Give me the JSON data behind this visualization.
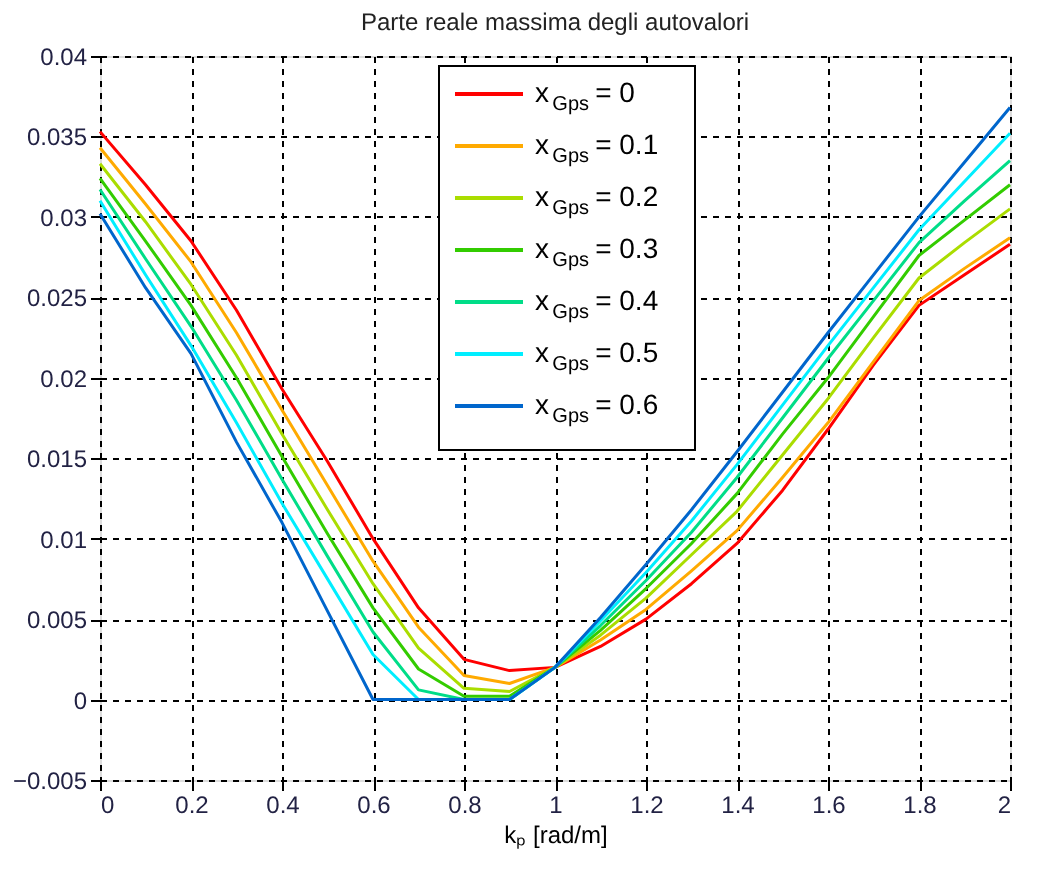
{
  "chart_data": {
    "type": "line",
    "title": "Parte reale massima degli autovalori",
    "xlabel": "kₚ [rad/m]",
    "x": [
      0,
      0.1,
      0.2,
      0.3,
      0.4,
      0.5,
      0.6,
      0.7,
      0.8,
      0.9,
      1.0,
      1.1,
      1.2,
      1.3,
      1.4,
      1.5,
      1.6,
      1.7,
      1.8,
      1.9,
      2.0
    ],
    "series": [
      {
        "name": "x$_{Gps}$ = 0",
        "color": "#ff0000",
        "values": [
          0.0353,
          0.032,
          0.0285,
          0.0242,
          0.0193,
          0.0148,
          0.01,
          0.0057,
          0.0025,
          0.0018,
          0.002,
          0.0033,
          0.005,
          0.0072,
          0.0097,
          0.013,
          0.0168,
          0.0208,
          0.0245,
          0.0264,
          0.0283
        ]
      },
      {
        "name": "x$_{Gps}$ = 0.1",
        "color": "#ffaa00",
        "values": [
          0.0343,
          0.0308,
          0.0272,
          0.0228,
          0.018,
          0.0133,
          0.0086,
          0.0045,
          0.0015,
          0.001,
          0.002,
          0.0037,
          0.0056,
          0.008,
          0.0105,
          0.0138,
          0.0172,
          0.021,
          0.0248,
          0.0268,
          0.0287
        ]
      },
      {
        "name": "x$_{Gps}$ = 0.2",
        "color": "#aadd00",
        "values": [
          0.0333,
          0.0297,
          0.0258,
          0.0214,
          0.0165,
          0.0118,
          0.0072,
          0.0032,
          0.0007,
          0.0005,
          0.002,
          0.004,
          0.0063,
          0.009,
          0.0117,
          0.0152,
          0.0187,
          0.0225,
          0.0262,
          0.0284,
          0.0305
        ]
      },
      {
        "name": "x$_{Gps}$ = 0.3",
        "color": "#33cc00",
        "values": [
          0.0324,
          0.0285,
          0.0245,
          0.02,
          0.0151,
          0.0103,
          0.0057,
          0.0019,
          0.0002,
          0.0002,
          0.002,
          0.0043,
          0.0069,
          0.0097,
          0.0128,
          0.0165,
          0.02,
          0.0238,
          0.0276,
          0.0298,
          0.032
        ]
      },
      {
        "name": "x$_{Gps}$ = 0.4",
        "color": "#00dd88",
        "values": [
          0.0317,
          0.0274,
          0.0232,
          0.0186,
          0.0137,
          0.0089,
          0.0042,
          0.0006,
          0.0,
          0.0,
          0.002,
          0.0046,
          0.0074,
          0.0104,
          0.0138,
          0.0175,
          0.0212,
          0.0248,
          0.0284,
          0.031,
          0.0335
        ]
      },
      {
        "name": "x$_{Gps}$ = 0.5",
        "color": "#00eeff",
        "values": [
          0.031,
          0.0264,
          0.022,
          0.0172,
          0.0122,
          0.0075,
          0.0028,
          0.0,
          0.0,
          0.0,
          0.002,
          0.0049,
          0.0079,
          0.0111,
          0.0146,
          0.0183,
          0.022,
          0.0256,
          0.0292,
          0.0322,
          0.0352
        ]
      },
      {
        "name": "x$_{Gps}$ = 0.6",
        "color": "#0066cc",
        "values": [
          0.0302,
          0.0256,
          0.0215,
          0.016,
          0.011,
          0.0055,
          0.0,
          0.0,
          0.0,
          0.0,
          0.002,
          0.0051,
          0.0084,
          0.0118,
          0.0154,
          0.0191,
          0.0228,
          0.0264,
          0.03,
          0.0334,
          0.0368
        ]
      }
    ],
    "xlim": [
      0,
      2
    ],
    "xticks": [
      0,
      0.2,
      0.4,
      0.6,
      0.8,
      1,
      1.2,
      1.4,
      1.6,
      1.8,
      2
    ],
    "ylim": [
      -0.005,
      0.04
    ],
    "yticks": [
      -0.005,
      0,
      0.005,
      0.01,
      0.015,
      0.02,
      0.025,
      0.03,
      0.035,
      0.04
    ],
    "grid": true,
    "legend": "top",
    "line_style": "solid",
    "marker": "none"
  }
}
